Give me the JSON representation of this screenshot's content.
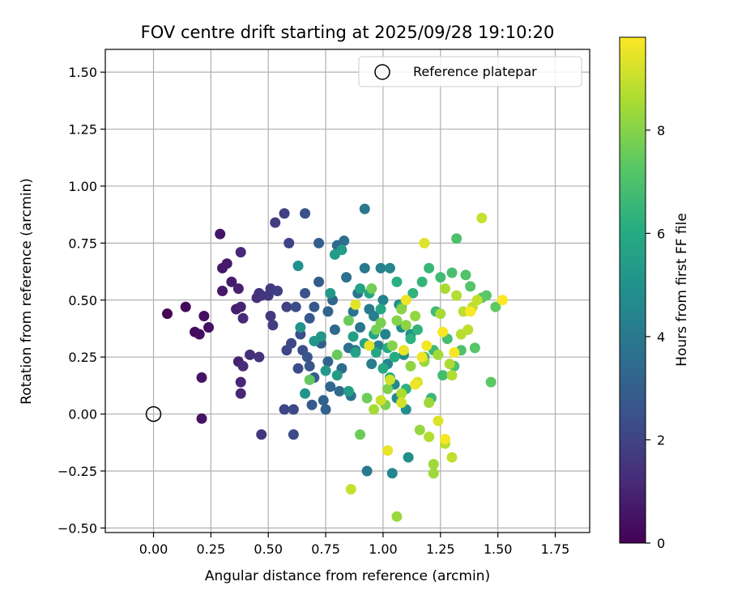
{
  "chart_data": {
    "type": "scatter",
    "title": "FOV centre drift starting at 2025/09/28 19:10:20",
    "xlabel": "Angular distance from reference (arcmin)",
    "ylabel": "Rotation from reference (arcmin)",
    "colorbar_label": "Hours from first FF file",
    "xlim": [
      -0.21,
      1.9
    ],
    "ylim": [
      -0.52,
      1.6
    ],
    "x_ticks": [
      0.0,
      0.25,
      0.5,
      0.75,
      1.0,
      1.25,
      1.5,
      1.75
    ],
    "x_tick_labels": [
      "0.00",
      "0.25",
      "0.50",
      "0.75",
      "1.00",
      "1.25",
      "1.50",
      "1.75"
    ],
    "y_ticks": [
      -0.5,
      -0.25,
      0.0,
      0.25,
      0.5,
      0.75,
      1.0,
      1.25,
      1.5
    ],
    "y_tick_labels": [
      "−0.50",
      "−0.25",
      "0.00",
      "0.25",
      "0.50",
      "0.75",
      "1.00",
      "1.25",
      "1.50"
    ],
    "colorbar_range": [
      0,
      9.8
    ],
    "colorbar_ticks": [
      0,
      2,
      4,
      6,
      8
    ],
    "colorbar_tick_labels": [
      "0",
      "2",
      "4",
      "6",
      "8"
    ],
    "grid": true,
    "legend": {
      "position": "top-right",
      "entries": [
        "Reference platepar"
      ]
    },
    "reference_point": {
      "x": 0.0,
      "y": 0.0,
      "label": "Reference platepar"
    },
    "points": [
      [
        0.06,
        0.44,
        0.05
      ],
      [
        0.14,
        0.47,
        0.2
      ],
      [
        0.18,
        0.36,
        0.3
      ],
      [
        0.2,
        0.35,
        0.35
      ],
      [
        0.22,
        0.43,
        0.4
      ],
      [
        0.24,
        0.38,
        0.45
      ],
      [
        0.21,
        0.16,
        0.5
      ],
      [
        0.21,
        -0.02,
        0.55
      ],
      [
        0.29,
        0.79,
        0.6
      ],
      [
        0.3,
        0.54,
        0.65
      ],
      [
        0.3,
        0.64,
        0.7
      ],
      [
        0.32,
        0.66,
        0.75
      ],
      [
        0.34,
        0.58,
        0.8
      ],
      [
        0.36,
        0.46,
        0.85
      ],
      [
        0.37,
        0.55,
        0.9
      ],
      [
        0.37,
        0.23,
        0.95
      ],
      [
        0.38,
        0.47,
        1.0
      ],
      [
        0.38,
        0.14,
        1.05
      ],
      [
        0.38,
        0.09,
        1.1
      ],
      [
        0.38,
        0.71,
        1.15
      ],
      [
        0.39,
        0.42,
        1.2
      ],
      [
        0.39,
        0.21,
        1.25
      ],
      [
        0.42,
        0.26,
        1.3
      ],
      [
        0.45,
        0.51,
        1.35
      ],
      [
        0.46,
        0.53,
        1.4
      ],
      [
        0.46,
        0.25,
        1.45
      ],
      [
        0.47,
        0.52,
        1.5
      ],
      [
        0.47,
        -0.09,
        1.55
      ],
      [
        0.5,
        0.52,
        1.6
      ],
      [
        0.51,
        0.43,
        1.65
      ],
      [
        0.51,
        0.55,
        1.7
      ],
      [
        0.52,
        0.39,
        1.75
      ],
      [
        0.53,
        0.84,
        1.8
      ],
      [
        0.54,
        0.54,
        1.85
      ],
      [
        0.57,
        0.88,
        1.9
      ],
      [
        0.58,
        0.47,
        1.95
      ],
      [
        0.59,
        0.75,
        2.0
      ],
      [
        0.57,
        0.02,
        2.05
      ],
      [
        0.58,
        0.28,
        2.1
      ],
      [
        0.6,
        0.31,
        2.15
      ],
      [
        0.61,
        0.02,
        2.2
      ],
      [
        0.61,
        -0.09,
        2.25
      ],
      [
        0.62,
        0.47,
        2.3
      ],
      [
        0.63,
        0.2,
        2.35
      ],
      [
        0.64,
        0.35,
        2.4
      ],
      [
        0.65,
        0.28,
        2.45
      ],
      [
        0.66,
        0.88,
        2.5
      ],
      [
        0.66,
        0.53,
        2.55
      ],
      [
        0.67,
        0.25,
        2.6
      ],
      [
        0.68,
        0.21,
        2.65
      ],
      [
        0.68,
        0.42,
        2.7
      ],
      [
        0.69,
        0.04,
        2.75
      ],
      [
        0.7,
        0.47,
        2.8
      ],
      [
        0.7,
        0.16,
        2.85
      ],
      [
        0.72,
        0.58,
        2.9
      ],
      [
        0.72,
        0.75,
        2.95
      ],
      [
        0.73,
        0.31,
        3.0
      ],
      [
        0.74,
        0.06,
        3.05
      ],
      [
        0.75,
        0.02,
        3.1
      ],
      [
        0.76,
        0.45,
        3.15
      ],
      [
        0.76,
        0.23,
        3.2
      ],
      [
        0.77,
        0.12,
        3.25
      ],
      [
        0.78,
        0.5,
        3.3
      ],
      [
        0.79,
        0.37,
        3.35
      ],
      [
        0.8,
        0.74,
        3.4
      ],
      [
        0.81,
        0.1,
        3.45
      ],
      [
        0.82,
        0.2,
        3.5
      ],
      [
        0.83,
        0.76,
        3.55
      ],
      [
        0.84,
        0.6,
        3.6
      ],
      [
        0.85,
        0.29,
        3.65
      ],
      [
        0.86,
        0.08,
        3.7
      ],
      [
        0.87,
        0.45,
        3.75
      ],
      [
        0.88,
        0.28,
        3.8
      ],
      [
        0.89,
        0.53,
        3.85
      ],
      [
        0.9,
        0.38,
        3.9
      ],
      [
        0.92,
        0.9,
        3.95
      ],
      [
        0.92,
        0.64,
        4.0
      ],
      [
        0.93,
        -0.25,
        4.05
      ],
      [
        0.94,
        0.46,
        4.1
      ],
      [
        0.95,
        0.22,
        4.15
      ],
      [
        0.96,
        0.43,
        4.2
      ],
      [
        0.98,
        0.3,
        4.25
      ],
      [
        0.99,
        0.64,
        4.3
      ],
      [
        1.0,
        0.5,
        4.35
      ],
      [
        1.01,
        0.35,
        4.4
      ],
      [
        1.02,
        0.22,
        4.45
      ],
      [
        1.03,
        0.64,
        4.5
      ],
      [
        1.04,
        -0.26,
        4.55
      ],
      [
        1.05,
        0.13,
        4.6
      ],
      [
        1.06,
        0.07,
        4.65
      ],
      [
        1.07,
        0.48,
        4.7
      ],
      [
        1.08,
        0.38,
        4.75
      ],
      [
        1.09,
        0.26,
        4.8
      ],
      [
        1.1,
        0.02,
        4.85
      ],
      [
        1.11,
        -0.19,
        4.9
      ],
      [
        1.12,
        0.35,
        4.95
      ],
      [
        0.63,
        0.65,
        5.0
      ],
      [
        0.64,
        0.38,
        5.05
      ],
      [
        0.66,
        0.09,
        5.1
      ],
      [
        0.7,
        0.32,
        5.15
      ],
      [
        0.73,
        0.34,
        5.2
      ],
      [
        0.75,
        0.19,
        5.25
      ],
      [
        0.77,
        0.53,
        5.3
      ],
      [
        0.79,
        0.7,
        5.35
      ],
      [
        0.8,
        0.17,
        5.4
      ],
      [
        0.82,
        0.72,
        5.45
      ],
      [
        0.85,
        0.1,
        5.5
      ],
      [
        0.87,
        0.34,
        5.55
      ],
      [
        0.88,
        0.27,
        5.6
      ],
      [
        0.9,
        0.55,
        5.65
      ],
      [
        0.92,
        0.31,
        5.7
      ],
      [
        0.94,
        0.53,
        5.75
      ],
      [
        0.96,
        0.35,
        5.8
      ],
      [
        0.97,
        0.27,
        5.85
      ],
      [
        0.99,
        0.46,
        5.9
      ],
      [
        1.0,
        0.2,
        5.95
      ],
      [
        1.02,
        0.29,
        6.0
      ],
      [
        1.03,
        0.16,
        6.05
      ],
      [
        1.05,
        0.25,
        6.1
      ],
      [
        1.06,
        0.58,
        6.15
      ],
      [
        1.08,
        0.47,
        6.2
      ],
      [
        1.1,
        0.11,
        6.25
      ],
      [
        1.12,
        0.33,
        6.3
      ],
      [
        1.13,
        0.53,
        6.35
      ],
      [
        1.15,
        0.37,
        6.4
      ],
      [
        1.17,
        0.58,
        6.45
      ],
      [
        1.18,
        0.25,
        6.5
      ],
      [
        1.2,
        0.64,
        6.55
      ],
      [
        1.21,
        0.07,
        6.6
      ],
      [
        1.22,
        0.28,
        6.65
      ],
      [
        1.23,
        0.45,
        6.7
      ],
      [
        1.25,
        0.6,
        6.75
      ],
      [
        1.26,
        0.17,
        6.8
      ],
      [
        1.28,
        0.33,
        6.85
      ],
      [
        1.3,
        0.62,
        6.9
      ],
      [
        1.31,
        0.21,
        6.95
      ],
      [
        1.32,
        0.77,
        7.0
      ],
      [
        1.34,
        0.28,
        7.05
      ],
      [
        1.36,
        0.61,
        7.1
      ],
      [
        1.38,
        0.56,
        7.15
      ],
      [
        1.4,
        0.29,
        7.2
      ],
      [
        1.43,
        0.51,
        7.25
      ],
      [
        1.45,
        0.52,
        7.3
      ],
      [
        1.47,
        0.14,
        7.35
      ],
      [
        1.49,
        0.47,
        7.4
      ],
      [
        0.68,
        0.15,
        7.45
      ],
      [
        0.8,
        0.26,
        7.5
      ],
      [
        0.85,
        0.41,
        7.55
      ],
      [
        0.9,
        -0.09,
        7.6
      ],
      [
        0.93,
        0.07,
        7.65
      ],
      [
        0.95,
        0.55,
        7.7
      ],
      [
        0.97,
        0.37,
        7.75
      ],
      [
        0.99,
        0.4,
        7.8
      ],
      [
        1.01,
        0.04,
        7.85
      ],
      [
        1.02,
        0.11,
        7.9
      ],
      [
        1.04,
        0.3,
        7.95
      ],
      [
        1.06,
        0.41,
        8.0
      ],
      [
        1.08,
        0.46,
        8.05
      ],
      [
        1.1,
        0.39,
        8.1
      ],
      [
        1.12,
        0.21,
        8.15
      ],
      [
        1.14,
        0.43,
        8.2
      ],
      [
        1.16,
        -0.07,
        8.25
      ],
      [
        1.18,
        0.23,
        8.3
      ],
      [
        1.2,
        0.05,
        8.35
      ],
      [
        1.22,
        -0.22,
        8.4
      ],
      [
        1.24,
        0.26,
        8.45
      ],
      [
        1.25,
        0.44,
        8.5
      ],
      [
        1.27,
        0.55,
        8.55
      ],
      [
        1.29,
        0.22,
        8.6
      ],
      [
        1.3,
        0.17,
        8.65
      ],
      [
        1.32,
        0.52,
        8.7
      ],
      [
        1.34,
        0.35,
        8.75
      ],
      [
        1.35,
        0.45,
        8.8
      ],
      [
        1.37,
        0.37,
        8.85
      ],
      [
        1.39,
        0.47,
        8.9
      ],
      [
        1.41,
        0.5,
        8.95
      ],
      [
        1.43,
        0.86,
        9.0
      ],
      [
        1.06,
        -0.45,
        8.3
      ],
      [
        1.22,
        -0.26,
        8.4
      ],
      [
        0.96,
        0.02,
        8.5
      ],
      [
        1.08,
        0.09,
        8.6
      ],
      [
        1.2,
        -0.1,
        8.7
      ],
      [
        1.27,
        -0.13,
        8.8
      ],
      [
        1.3,
        -0.19,
        8.9
      ],
      [
        0.86,
        -0.33,
        9.0
      ],
      [
        0.99,
        0.06,
        9.05
      ],
      [
        1.03,
        0.15,
        9.1
      ],
      [
        1.08,
        0.05,
        9.15
      ],
      [
        1.15,
        0.14,
        9.2
      ],
      [
        1.24,
        -0.03,
        9.3
      ],
      [
        1.18,
        0.75,
        9.35
      ],
      [
        0.88,
        0.48,
        9.4
      ],
      [
        0.94,
        0.3,
        9.45
      ],
      [
        1.02,
        -0.16,
        9.5
      ],
      [
        1.1,
        0.5,
        9.55
      ],
      [
        1.14,
        0.13,
        9.6
      ],
      [
        1.19,
        0.3,
        9.65
      ],
      [
        1.27,
        -0.11,
        9.7
      ],
      [
        1.31,
        0.27,
        9.72
      ],
      [
        1.38,
        0.45,
        9.75
      ],
      [
        1.52,
        0.5,
        9.78
      ],
      [
        1.26,
        0.36,
        9.7
      ],
      [
        1.17,
        0.25,
        9.6
      ],
      [
        1.09,
        0.28,
        9.5
      ]
    ]
  }
}
